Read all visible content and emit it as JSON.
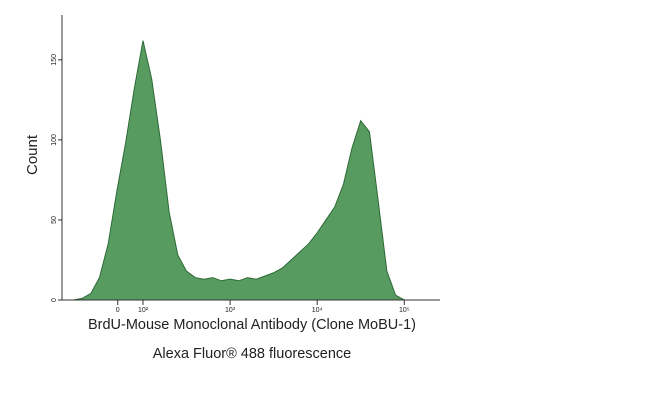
{
  "chart_data": {
    "type": "area",
    "ylabel": "Count",
    "xlabel": [
      "BrdU-Mouse Monoclonal Antibody (Clone MoBU-1)",
      "Alexa Fluor® 488 fluorescence"
    ],
    "x": [
      1.1,
      1.2,
      1.3,
      1.4,
      1.5,
      1.6,
      1.7,
      1.8,
      1.9,
      2.0,
      2.1,
      2.2,
      2.3,
      2.4,
      2.5,
      2.6,
      2.7,
      2.8,
      2.9,
      3.0,
      3.1,
      3.2,
      3.3,
      3.4,
      3.5,
      3.6,
      3.7,
      3.8,
      3.9,
      4.0,
      4.1,
      4.2,
      4.3,
      4.4,
      4.5,
      4.6,
      4.7,
      4.8,
      4.9,
      5.0,
      5.1,
      5.2,
      5.3
    ],
    "values": [
      0,
      0,
      1,
      4,
      14,
      35,
      68,
      98,
      132,
      162,
      138,
      100,
      55,
      28,
      18,
      14,
      13,
      14,
      12,
      13,
      12,
      14,
      13,
      15,
      17,
      20,
      25,
      30,
      35,
      42,
      50,
      58,
      72,
      95,
      112,
      105,
      62,
      18,
      3,
      0,
      0,
      0,
      0
    ],
    "color": "#4f9658",
    "xlim": [
      1.07,
      5.41
    ],
    "ylim": [
      0,
      178
    ],
    "xticks": [
      {
        "value": 1.71,
        "label": "0"
      },
      {
        "value": 2,
        "label": "10²"
      },
      {
        "value": 3,
        "label": "10³"
      },
      {
        "value": 4,
        "label": "10⁴"
      },
      {
        "value": 5,
        "label": "10⁵"
      }
    ],
    "yticks": [
      0,
      50,
      100,
      150
    ]
  }
}
